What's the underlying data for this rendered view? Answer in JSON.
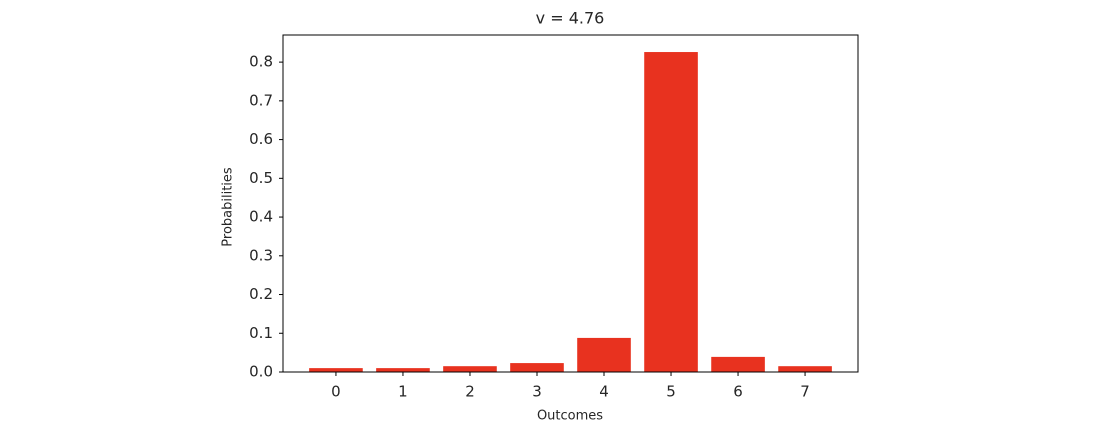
{
  "chart_data": {
    "type": "bar",
    "title": "v = 4.76",
    "x_label": "Outcomes",
    "y_label": "Probabilities",
    "categories": [
      "0",
      "1",
      "2",
      "3",
      "4",
      "5",
      "6",
      "7"
    ],
    "values": [
      0.01,
      0.01,
      0.015,
      0.023,
      0.088,
      0.826,
      0.039,
      0.015
    ],
    "color": "#e8321f",
    "ylim": [
      0,
      0.87
    ],
    "yticks": [
      {
        "value": 0,
        "label": "0.0"
      },
      0.1,
      0.2,
      0.3,
      0.4,
      0.5,
      0.6,
      0.7,
      0.8
    ],
    "grid": false
  }
}
